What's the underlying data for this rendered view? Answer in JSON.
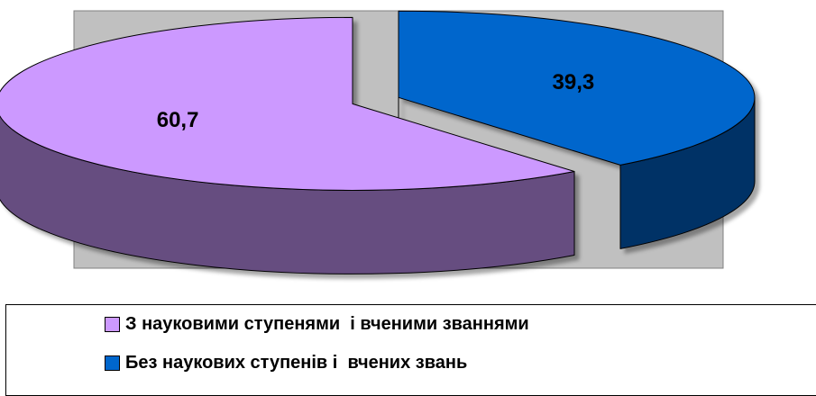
{
  "chart_data": {
    "type": "pie",
    "style": "3d-exploded",
    "title": "",
    "categories": [
      "З науковими ступенями  і вченими званнями",
      "Без наукових ступенів і  вчених звань"
    ],
    "values": [
      60.7,
      39.3
    ],
    "value_labels": [
      "60,7",
      "39,3"
    ],
    "legend_position": "bottom",
    "colors": {
      "slice_1_top": "#CC99FF",
      "slice_1_side": "#664D80",
      "slice_2_top": "#0066CC",
      "slice_2_side": "#003366",
      "plot_area": "#C0C0C0"
    }
  }
}
